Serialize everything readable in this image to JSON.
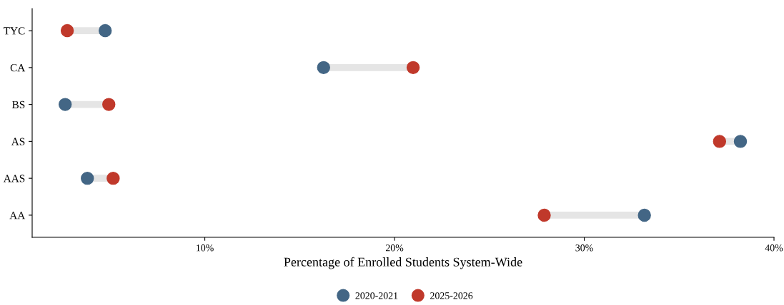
{
  "chart_data": {
    "type": "scatter",
    "orientation": "horizontal",
    "xlabel": "Percentage of Enrolled Students System-Wide",
    "categories": [
      "TYC",
      "CA",
      "BS",
      "AS",
      "AAS",
      "AA"
    ],
    "series": [
      {
        "name": "2020-2021",
        "color": "#436685",
        "values": [
          4.75,
          16.26,
          2.64,
          38.23,
          3.81,
          33.17
        ]
      },
      {
        "name": "2025-2026",
        "color": "#c0392b",
        "values": [
          2.75,
          20.98,
          4.94,
          37.13,
          5.17,
          27.89
        ]
      }
    ],
    "xlim": [
      0.9,
      40
    ],
    "xticks": [
      {
        "value": 10,
        "label": "10%"
      },
      {
        "value": 20,
        "label": "20%"
      },
      {
        "value": 30,
        "label": "30%"
      },
      {
        "value": 40,
        "label": "40%"
      }
    ],
    "legend": "bottom",
    "grid": false,
    "marker": "circle"
  }
}
